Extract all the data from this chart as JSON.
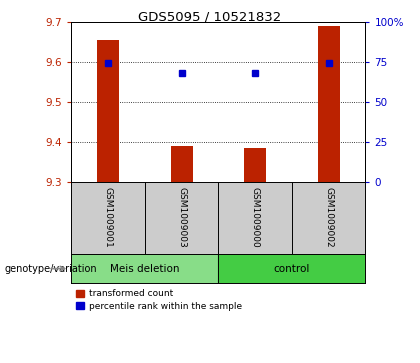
{
  "title": "GDS5095 / 10521832",
  "samples": [
    "GSM1009001",
    "GSM1009003",
    "GSM1009000",
    "GSM1009002"
  ],
  "transformed_counts": [
    9.655,
    9.39,
    9.383,
    9.69
  ],
  "percentile_ranks": [
    74,
    68,
    68,
    74
  ],
  "ylim_left": [
    9.3,
    9.7
  ],
  "ylim_right": [
    0,
    100
  ],
  "yticks_left": [
    9.3,
    9.4,
    9.5,
    9.6,
    9.7
  ],
  "yticks_right": [
    0,
    25,
    50,
    75,
    100
  ],
  "ytick_labels_right": [
    "0",
    "25",
    "50",
    "75",
    "100%"
  ],
  "bar_color": "#bb2200",
  "dot_color": "#0000cc",
  "bar_width": 0.3,
  "label_row_color": "#cccccc",
  "bg_color": "#ffffff",
  "plot_bg_color": "#ffffff",
  "group1_color": "#88dd88",
  "group2_color": "#44cc44",
  "legend_items": [
    {
      "color": "#bb2200",
      "label": "transformed count"
    },
    {
      "color": "#0000cc",
      "label": "percentile rank within the sample"
    }
  ],
  "genotype_label": "genotype/variation",
  "ybase": 9.3,
  "grid_yticks": [
    9.4,
    9.5,
    9.6
  ]
}
